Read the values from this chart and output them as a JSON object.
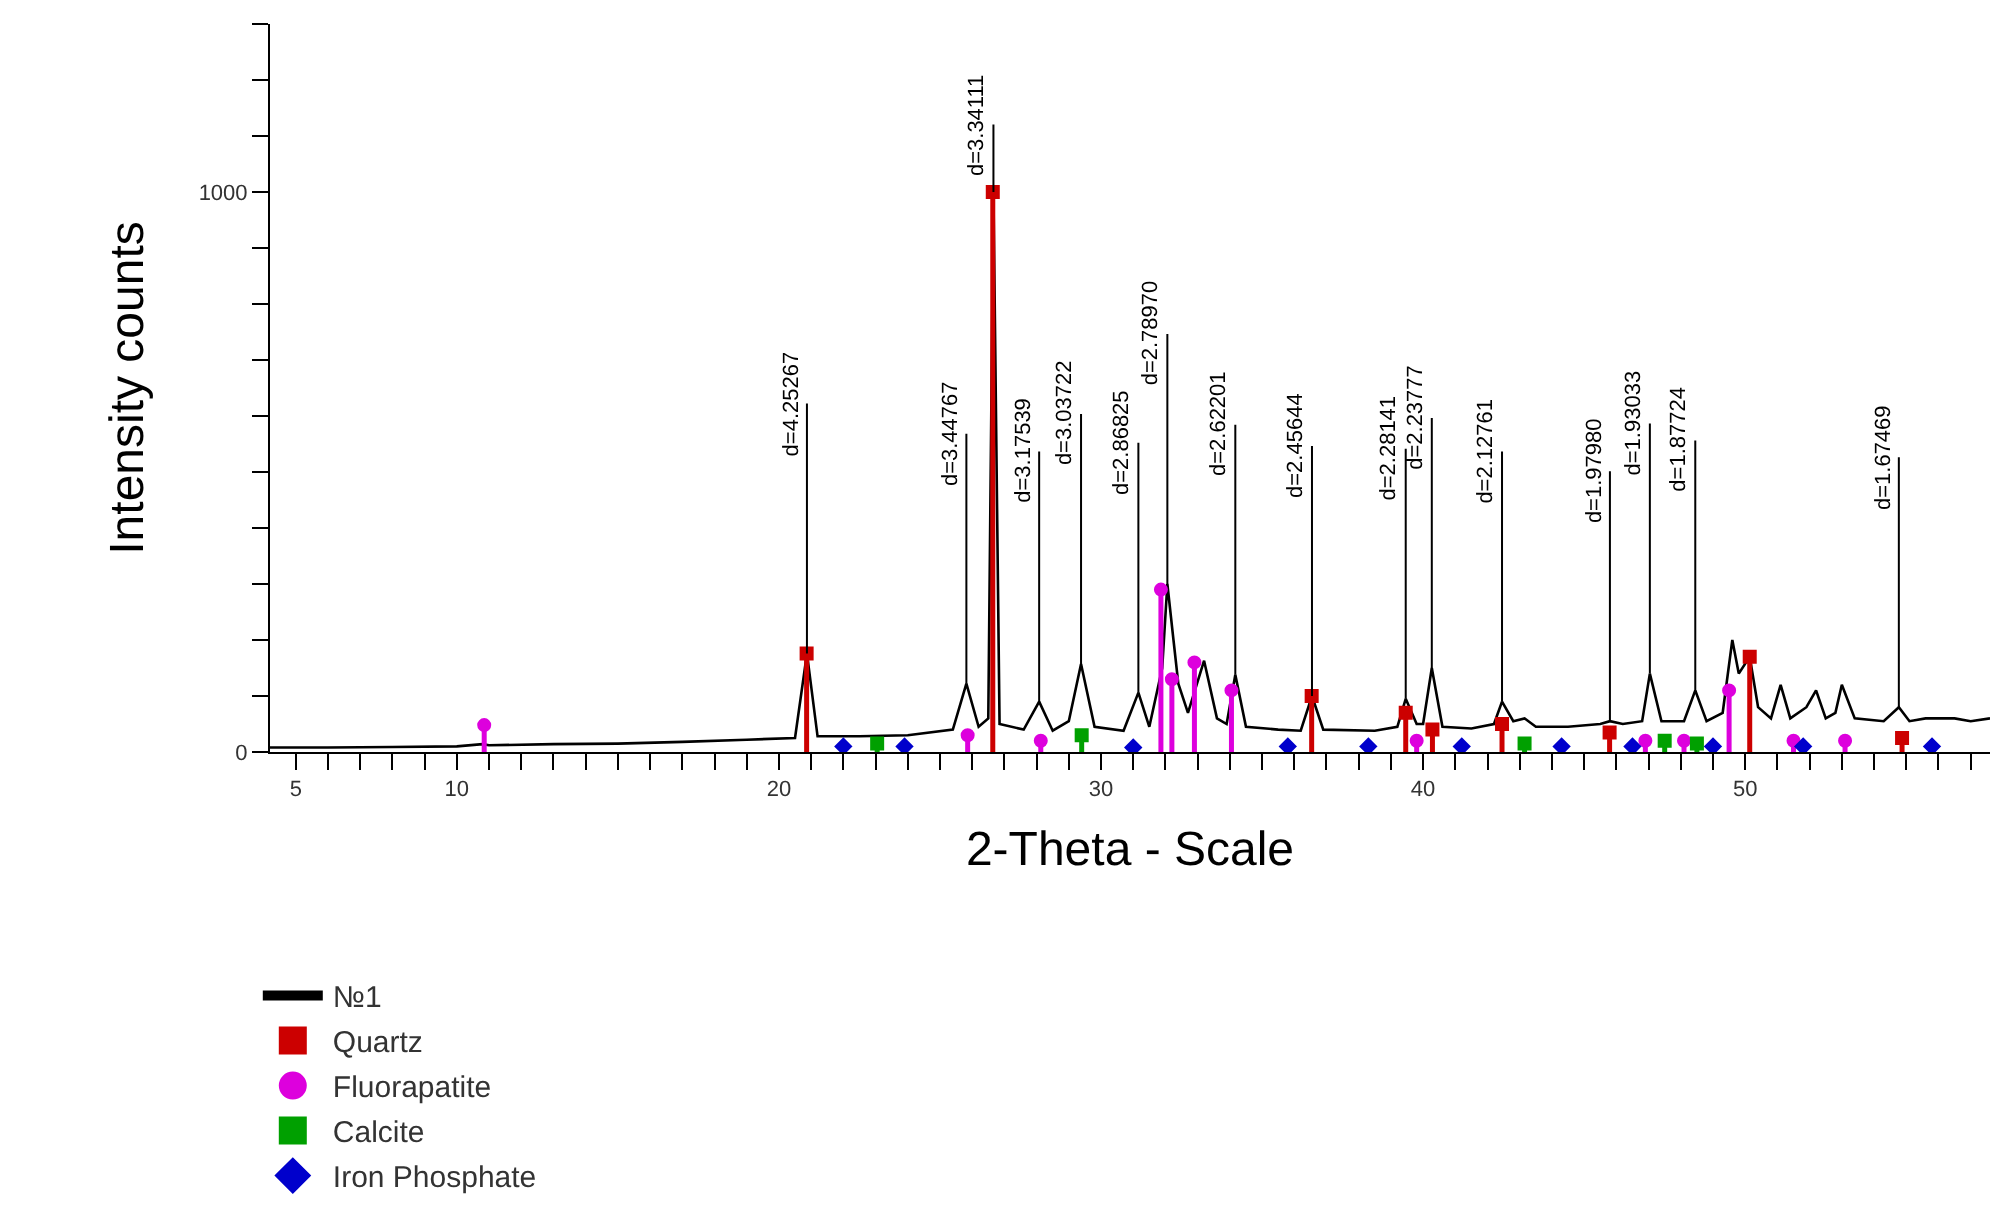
{
  "chart_data": {
    "type": "line",
    "xlabel": "2-Theta - Scale",
    "ylabel": "Intensity counts",
    "xlim": [
      4.2,
      57.6
    ],
    "ylim": [
      0,
      1300
    ],
    "xticks": [
      5,
      {
        "value": 6,
        "label": null
      },
      {
        "value": 7,
        "label": null
      },
      {
        "value": 8,
        "label": null
      },
      {
        "value": 9,
        "label": null
      },
      10,
      {
        "value": 11,
        "label": null
      },
      {
        "value": 12,
        "label": null
      },
      {
        "value": 13,
        "label": null
      },
      {
        "value": 14,
        "label": null
      },
      {
        "value": 15,
        "label": null
      },
      {
        "value": 16,
        "label": null
      },
      {
        "value": 17,
        "label": null
      },
      {
        "value": 18,
        "label": null
      },
      {
        "value": 19,
        "label": null
      },
      20,
      {
        "value": 21,
        "label": null
      },
      {
        "value": 22,
        "label": null
      },
      {
        "value": 23,
        "label": null
      },
      {
        "value": 24,
        "label": null
      },
      {
        "value": 25,
        "label": null
      },
      {
        "value": 26,
        "label": null
      },
      {
        "value": 27,
        "label": null
      },
      {
        "value": 28,
        "label": null
      },
      {
        "value": 29,
        "label": null
      },
      30,
      {
        "value": 31,
        "label": null
      },
      {
        "value": 32,
        "label": null
      },
      {
        "value": 33,
        "label": null
      },
      {
        "value": 34,
        "label": null
      },
      {
        "value": 35,
        "label": null
      },
      {
        "value": 36,
        "label": null
      },
      {
        "value": 37,
        "label": null
      },
      {
        "value": 38,
        "label": null
      },
      {
        "value": 39,
        "label": null
      },
      40,
      {
        "value": 41,
        "label": null
      },
      {
        "value": 42,
        "label": null
      },
      {
        "value": 43,
        "label": null
      },
      {
        "value": 44,
        "label": null
      },
      {
        "value": 45,
        "label": null
      },
      {
        "value": 46,
        "label": null
      },
      {
        "value": 47,
        "label": null
      },
      {
        "value": 48,
        "label": null
      },
      {
        "value": 49,
        "label": null
      },
      50,
      {
        "value": 51,
        "label": null
      },
      {
        "value": 52,
        "label": null
      },
      {
        "value": 53,
        "label": null
      },
      {
        "value": 54,
        "label": null
      },
      {
        "value": 55,
        "label": null
      },
      {
        "value": 56,
        "label": null
      },
      {
        "value": 57,
        "label": null
      }
    ],
    "yticks": [
      0,
      {
        "value": 100,
        "label": null
      },
      {
        "value": 200,
        "label": null
      },
      {
        "value": 300,
        "label": null
      },
      {
        "value": 400,
        "label": null
      },
      {
        "value": 500,
        "label": null
      },
      {
        "value": 600,
        "label": null
      },
      {
        "value": 700,
        "label": null
      },
      {
        "value": 800,
        "label": null
      },
      {
        "value": 900,
        "label": null
      },
      1000,
      {
        "value": 1100,
        "label": null
      },
      {
        "value": 1200,
        "label": null
      },
      {
        "value": 1300,
        "label": null
      }
    ],
    "legend": "bottom left",
    "series": [
      {
        "name": "№1",
        "color": "#000000",
        "marker": "none",
        "x": [
          4.2,
          6,
          8,
          10,
          10.8,
          11,
          13,
          15,
          17,
          19,
          20.5,
          20.87,
          21.2,
          22.5,
          24,
          25.4,
          25.82,
          26.2,
          26.5,
          26.66,
          26.85,
          27.6,
          28.08,
          28.5,
          29.0,
          29.38,
          29.8,
          30.7,
          31.16,
          31.5,
          31.9,
          32.06,
          32.25,
          32.4,
          32.7,
          33.2,
          33.6,
          33.9,
          34.17,
          34.5,
          35.5,
          36.2,
          36.55,
          36.9,
          38.5,
          39.2,
          39.46,
          39.8,
          40.0,
          40.27,
          40.6,
          41.5,
          42.2,
          42.45,
          42.8,
          43.15,
          43.5,
          44.5,
          45.5,
          45.8,
          46.2,
          46.8,
          47.04,
          47.4,
          48.1,
          48.45,
          48.8,
          49.3,
          49.6,
          49.8,
          50.14,
          50.4,
          50.8,
          51.1,
          51.4,
          51.9,
          52.2,
          52.5,
          52.8,
          53.0,
          53.4,
          54.3,
          54.77,
          55.1,
          55.6,
          56.5,
          57.0,
          57.6
        ],
        "values": [
          8,
          8,
          9,
          10,
          14,
          12,
          14,
          15,
          18,
          22,
          25,
          176,
          28,
          28,
          30,
          40,
          122,
          45,
          60,
          1000,
          50,
          40,
          90,
          38,
          55,
          157,
          45,
          38,
          106,
          45,
          150,
          300,
          200,
          122,
          70,
          163,
          60,
          50,
          138,
          45,
          40,
          38,
          100,
          40,
          38,
          45,
          95,
          50,
          50,
          150,
          45,
          42,
          50,
          90,
          55,
          60,
          45,
          45,
          50,
          55,
          50,
          55,
          140,
          55,
          55,
          110,
          55,
          70,
          200,
          140,
          170,
          80,
          60,
          120,
          60,
          80,
          110,
          60,
          70,
          120,
          60,
          55,
          80,
          55,
          60,
          60,
          55,
          60
        ]
      },
      {
        "name": "Quartz",
        "type": "lollipop",
        "color": "#cc0000",
        "marker": "square",
        "x": [
          20.86,
          26.64,
          36.54,
          39.46,
          40.29,
          42.45,
          45.79,
          50.14,
          54.87
        ],
        "values": [
          176,
          1000,
          100,
          70,
          40,
          50,
          35,
          170,
          25
        ]
      },
      {
        "name": "Fluorapatite",
        "type": "lollipop",
        "color": "#dd00dd",
        "marker": "circle",
        "x": [
          10.85,
          25.86,
          28.13,
          31.86,
          32.2,
          32.9,
          34.05,
          39.8,
          46.9,
          48.1,
          49.5,
          51.5,
          53.1
        ],
        "values": [
          48,
          30,
          20,
          290,
          130,
          160,
          110,
          20,
          20,
          20,
          110,
          20,
          20
        ]
      },
      {
        "name": "Calcite",
        "type": "lollipop",
        "color": "#00a000",
        "marker": "square",
        "x": [
          23.05,
          29.4,
          43.15,
          47.5,
          48.5
        ],
        "values": [
          15,
          30,
          15,
          20,
          15
        ]
      },
      {
        "name": "Iron Phosphate",
        "type": "lollipop",
        "color": "#0000cc",
        "marker": "diamond",
        "x": [
          22.0,
          23.9,
          31.0,
          35.8,
          38.3,
          41.2,
          44.3,
          46.5,
          49.0,
          51.8,
          55.8
        ],
        "values": [
          10,
          10,
          8,
          10,
          10,
          10,
          10,
          10,
          10,
          10,
          10
        ]
      }
    ],
    "annotations": [
      {
        "text": "d=4.25267",
        "x": 20.87,
        "y": 176
      },
      {
        "text": "d=3.44767",
        "x": 25.82,
        "y": 122
      },
      {
        "text": "d=3.34111",
        "x": 26.66,
        "y": 1000
      },
      {
        "text": "d=3.17539",
        "x": 28.08,
        "y": 90
      },
      {
        "text": "d=3.03722",
        "x": 29.38,
        "y": 157
      },
      {
        "text": "d=2.86825",
        "x": 31.16,
        "y": 106
      },
      {
        "text": "d=2.78970",
        "x": 32.06,
        "y": 300
      },
      {
        "text": "d=2.62201",
        "x": 34.17,
        "y": 138
      },
      {
        "text": "d=2.45644",
        "x": 36.55,
        "y": 100
      },
      {
        "text": "d=2.28141",
        "x": 39.46,
        "y": 95
      },
      {
        "text": "d=2.23777",
        "x": 40.27,
        "y": 150
      },
      {
        "text": "d=2.12761",
        "x": 42.45,
        "y": 90
      },
      {
        "text": "d=1.97980",
        "x": 45.8,
        "y": 55
      },
      {
        "text": "d=1.93033",
        "x": 47.04,
        "y": 140
      },
      {
        "text": "d=1.87724",
        "x": 48.45,
        "y": 110
      },
      {
        "text": "d=1.67469",
        "x": 54.77,
        "y": 80
      }
    ]
  }
}
